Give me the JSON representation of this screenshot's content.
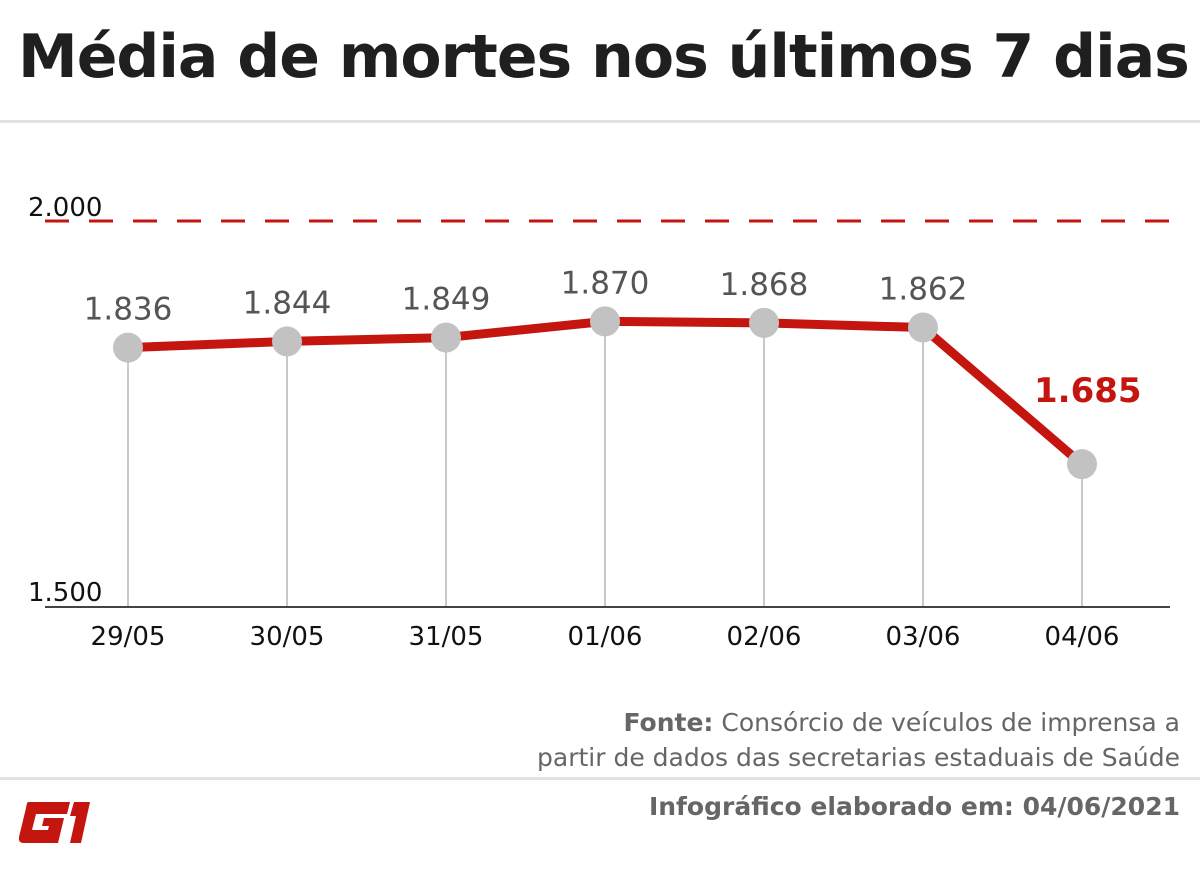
{
  "title": "Média de mortes nos últimos 7 dias",
  "chart_data": {
    "type": "line",
    "title": "Média de mortes nos últimos 7 dias",
    "categories": [
      "29/05",
      "30/05",
      "31/05",
      "01/06",
      "02/06",
      "03/06",
      "04/06"
    ],
    "values": [
      1836,
      1844,
      1849,
      1870,
      1868,
      1862,
      1685
    ],
    "data_labels": [
      "1.836",
      "1.844",
      "1.849",
      "1.870",
      "1.868",
      "1.862",
      "1.685"
    ],
    "ylim": [
      1500,
      2000
    ],
    "y_tick_labels": [
      "1.500",
      "2.000"
    ],
    "reference_line": {
      "value": 2000,
      "style": "dashed"
    },
    "grid": false,
    "colors": {
      "line": "#c4150f",
      "marker": "#c2c2c2",
      "highlight_label": "#c4150f",
      "label": "#555555"
    }
  },
  "footer": {
    "source_label": "Fonte:",
    "source_text_line1": "Consórcio de veículos de imprensa a",
    "source_text_line2": "partir de dados das secretarias estaduais de Saúde",
    "info": "Infográfico elaborado em: 04/06/2021",
    "logo": "G1"
  }
}
